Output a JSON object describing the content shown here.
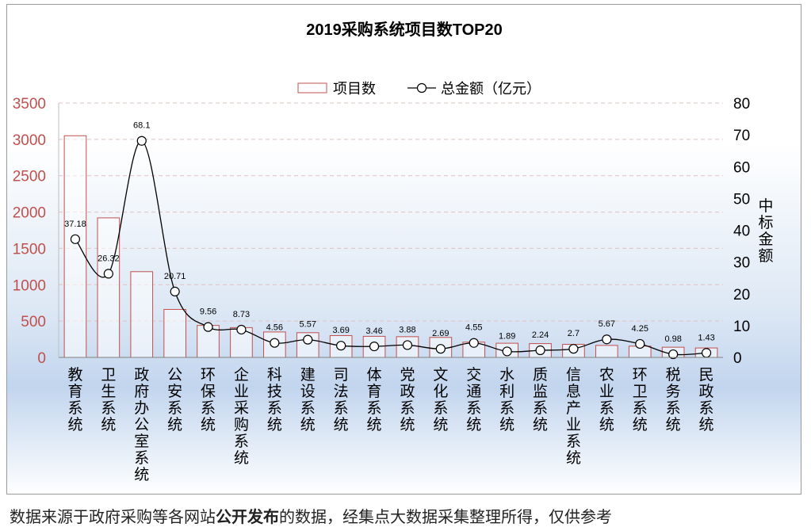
{
  "chart_data": {
    "type": "bar",
    "title": "2019采购系统项目数TOP20",
    "categories": [
      "教育系统",
      "卫生系统",
      "政府办公室系统",
      "公安系统",
      "环保系统",
      "企业采购系统",
      "科技系统",
      "建设系统",
      "司法系统",
      "体育系统",
      "党政系统",
      "文化系统",
      "交通系统",
      "水利系统",
      "质监系统",
      "信息产业系统",
      "农业系统",
      "环卫系统",
      "税务系统",
      "民政系统"
    ],
    "series": [
      {
        "name": "项目数",
        "type": "bar",
        "axis": "left",
        "values": [
          3050,
          1920,
          1180,
          660,
          440,
          410,
          350,
          340,
          300,
          290,
          285,
          275,
          210,
          195,
          190,
          180,
          165,
          155,
          140,
          130
        ],
        "color": "#c0504d"
      },
      {
        "name": "总金额（亿元）",
        "type": "line",
        "axis": "right",
        "values": [
          37.18,
          26.32,
          68.1,
          20.71,
          9.56,
          8.73,
          4.56,
          5.57,
          3.69,
          3.46,
          3.88,
          2.69,
          4.55,
          1.89,
          2.24,
          2.7,
          5.67,
          4.25,
          0.98,
          1.43
        ],
        "labels": [
          "37.18",
          "26.32",
          "68.1",
          "20.71",
          "9.56",
          "8.73",
          "4.56",
          "5.57",
          "3.69",
          "3.46",
          "3.88",
          "2.69",
          "4.55",
          "1.89",
          "2.24",
          "2.7",
          "5.67",
          "4.25",
          "0.98",
          "1.43"
        ],
        "color": "#000000"
      }
    ],
    "y_left": {
      "ticks": [
        "0",
        "500",
        "1000",
        "1500",
        "2000",
        "2500",
        "3000",
        "3500"
      ],
      "range": [
        0,
        3500
      ],
      "color": "#c0504d",
      "label": ""
    },
    "y_right": {
      "ticks": [
        "0",
        "10",
        "20",
        "30",
        "40",
        "50",
        "60",
        "70",
        "80"
      ],
      "range": [
        0,
        80
      ],
      "label": "中标金额"
    },
    "legend_position": "top-center",
    "grid": true
  },
  "footnote": {
    "before": "数据来源于政府采购等各网站",
    "bold": "公开发布",
    "after": "的数据，经集点大数据采集整理所得，仅供参考"
  }
}
